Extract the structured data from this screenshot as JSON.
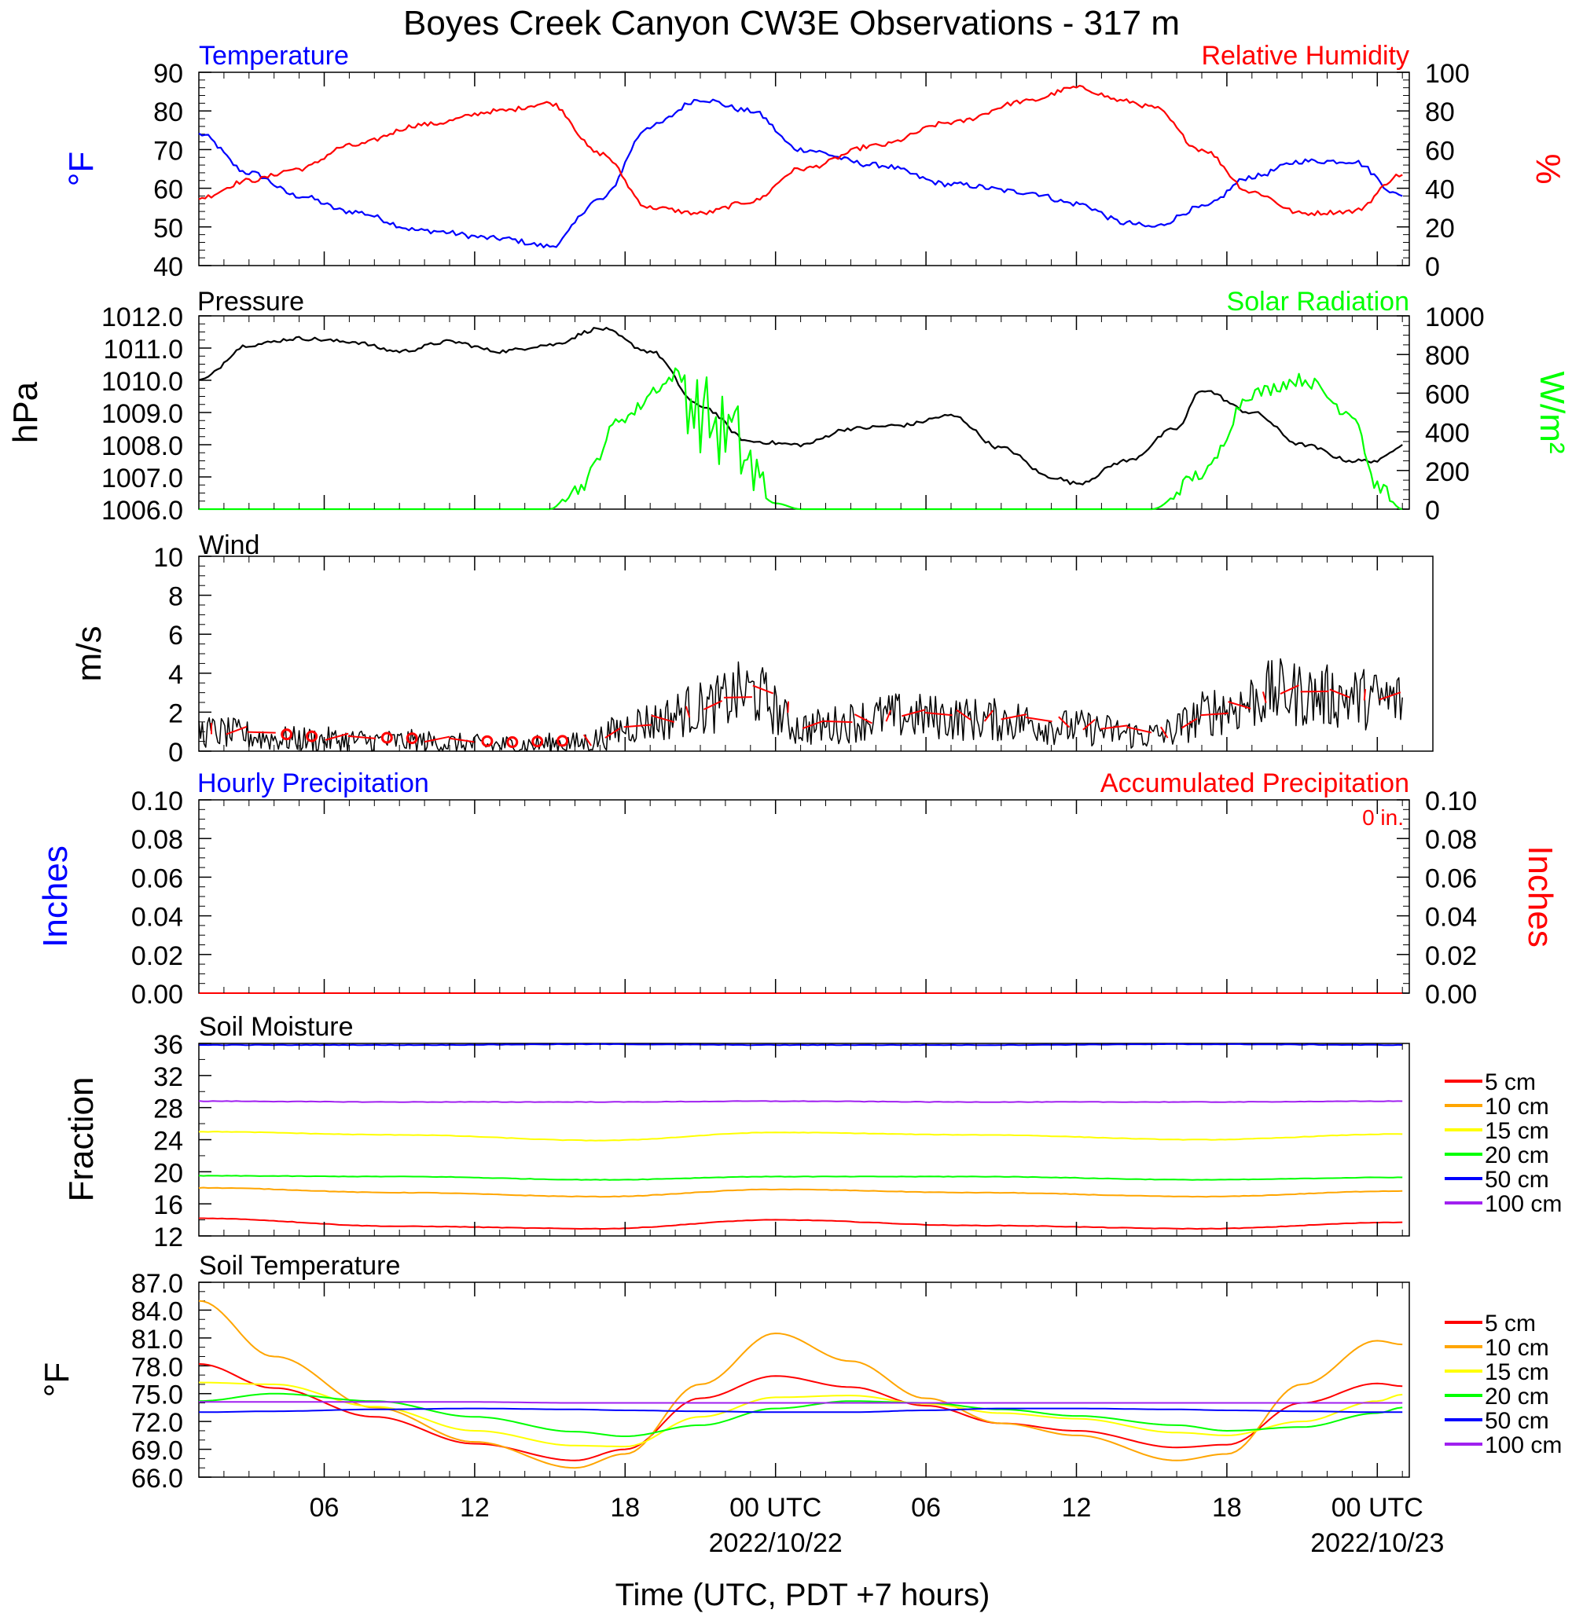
{
  "title": "Boyes Creek Canyon CW3E Observations - 317 m",
  "xaxis": {
    "title": "Time (UTC, PDT +7 hours)",
    "tick_labels": [
      "06",
      "12",
      "18",
      "00 UTC",
      "06",
      "12",
      "18",
      "00 UTC"
    ],
    "date_labels": [
      "2022/10/22",
      "2022/10/23"
    ]
  },
  "colors": {
    "temperature": "#0000ff",
    "humidity": "#ff0000",
    "pressure": "#000000",
    "solar": "#00ff00",
    "wind": "#000000",
    "wind_barb": "#ff0000",
    "hourly_precip": "#0000ff",
    "accum_precip": "#ff0000",
    "depth_5": "#ff0000",
    "depth_10": "#ffa500",
    "depth_15": "#ffff00",
    "depth_20": "#00ff00",
    "depth_50": "#0000ff",
    "depth_100": "#a020f0"
  },
  "panels": {
    "temp_rh": {
      "left_title": "Temperature",
      "right_title": "Relative Humidity",
      "left_ylabel": "°F",
      "right_ylabel": "%",
      "left_ticks": [
        "90",
        "80",
        "70",
        "60",
        "50",
        "40"
      ],
      "right_ticks": [
        "100",
        "80",
        "60",
        "40",
        "20",
        "0"
      ]
    },
    "pressure_solar": {
      "left_title": "Pressure",
      "right_title": "Solar Radiation",
      "left_ylabel": "hPa",
      "right_ylabel": "W/m²",
      "left_ticks": [
        "1012.0",
        "1011.0",
        "1010.0",
        "1009.0",
        "1008.0",
        "1007.0",
        "1006.0"
      ],
      "right_ticks": [
        "1000",
        "800",
        "600",
        "400",
        "200",
        "0"
      ]
    },
    "wind": {
      "left_title": "Wind",
      "left_ylabel": "m/s",
      "left_ticks": [
        "10",
        "8",
        "6",
        "4",
        "2",
        "0"
      ]
    },
    "precip": {
      "left_title": "Hourly Precipitation",
      "right_title": "Accumulated Precipitation",
      "total_label": "0 in.",
      "left_ylabel": "Inches",
      "right_ylabel": "Inches",
      "left_ticks": [
        "0.10",
        "0.08",
        "0.06",
        "0.04",
        "0.02",
        "0.00"
      ],
      "right_ticks": [
        "0.10",
        "0.08",
        "0.06",
        "0.04",
        "0.02",
        "0.00"
      ]
    },
    "soil_moisture": {
      "left_title": "Soil Moisture",
      "left_ylabel": "Fraction",
      "left_ticks": [
        "36",
        "32",
        "28",
        "24",
        "20",
        "16",
        "12"
      ],
      "legend": [
        "5 cm",
        "10 cm",
        "15 cm",
        "20 cm",
        "50 cm",
        "100 cm"
      ]
    },
    "soil_temp": {
      "left_title": "Soil Temperature",
      "left_ylabel": "°F",
      "left_ticks": [
        "87.0",
        "84.0",
        "81.0",
        "78.0",
        "75.0",
        "72.0",
        "69.0",
        "66.0"
      ],
      "legend": [
        "5 cm",
        "10 cm",
        "15 cm",
        "20 cm",
        "50 cm",
        "100 cm"
      ]
    }
  },
  "chart_data": [
    {
      "type": "line",
      "title": "Temperature",
      "ylabel": "°F",
      "ylim": [
        40,
        90
      ],
      "x": [
        "2022-10-21T01:00Z",
        "2022-10-21T03:00Z",
        "2022-10-21T05:00Z",
        "2022-10-21T07:00Z",
        "2022-10-21T10:00Z",
        "2022-10-21T13:00Z",
        "2022-10-21T15:00Z",
        "2022-10-21T17:00Z",
        "2022-10-21T19:00Z",
        "2022-10-21T21:00Z",
        "2022-10-21T23:00Z",
        "2022-10-22T01:00Z",
        "2022-10-22T04:00Z",
        "2022-10-22T07:00Z",
        "2022-10-22T10:00Z",
        "2022-10-22T12:00Z",
        "2022-10-22T14:00Z",
        "2022-10-22T15:00Z",
        "2022-10-22T17:00Z",
        "2022-10-22T19:00Z",
        "2022-10-22T21:00Z",
        "2022-10-22T23:00Z",
        "2022-10-23T01:00Z"
      ],
      "series": [
        {
          "name": "Temperature",
          "values": [
            74,
            64,
            58,
            54,
            49,
            47,
            45,
            57,
            76,
            83,
            80,
            70,
            66,
            61,
            59,
            56,
            51,
            50,
            55,
            63,
            67,
            67,
            58
          ]
        }
      ]
    },
    {
      "type": "line",
      "title": "Relative Humidity",
      "ylabel": "%",
      "ylim": [
        0,
        100
      ],
      "x": [
        "2022-10-21T01:00Z",
        "2022-10-21T03:00Z",
        "2022-10-21T05:00Z",
        "2022-10-21T07:00Z",
        "2022-10-21T10:00Z",
        "2022-10-21T13:00Z",
        "2022-10-21T15:00Z",
        "2022-10-21T17:00Z",
        "2022-10-21T19:00Z",
        "2022-10-21T21:00Z",
        "2022-10-21T23:00Z",
        "2022-10-22T01:00Z",
        "2022-10-22T04:00Z",
        "2022-10-22T07:00Z",
        "2022-10-22T10:00Z",
        "2022-10-22T12:00Z",
        "2022-10-22T14:00Z",
        "2022-10-22T15:00Z",
        "2022-10-22T17:00Z",
        "2022-10-22T19:00Z",
        "2022-10-22T21:00Z",
        "2022-10-22T23:00Z",
        "2022-10-23T01:00Z"
      ],
      "series": [
        {
          "name": "Relative Humidity",
          "values": [
            35,
            44,
            50,
            62,
            73,
            80,
            84,
            58,
            30,
            27,
            33,
            50,
            62,
            74,
            85,
            92,
            85,
            82,
            60,
            38,
            27,
            28,
            47
          ]
        }
      ]
    },
    {
      "type": "line",
      "title": "Pressure",
      "ylabel": "hPa",
      "ylim": [
        1006,
        1012
      ],
      "x": [
        "2022-10-21T01:00Z",
        "2022-10-21T03:00Z",
        "2022-10-21T05:00Z",
        "2022-10-21T07:00Z",
        "2022-10-21T09:00Z",
        "2022-10-21T11:00Z",
        "2022-10-21T13:00Z",
        "2022-10-21T15:00Z",
        "2022-10-21T17:00Z",
        "2022-10-21T19:00Z",
        "2022-10-21T21:00Z",
        "2022-10-21T23:00Z",
        "2022-10-22T01:00Z",
        "2022-10-22T03:00Z",
        "2022-10-22T05:00Z",
        "2022-10-22T07:00Z",
        "2022-10-22T09:00Z",
        "2022-10-22T11:00Z",
        "2022-10-22T12:00Z",
        "2022-10-22T14:00Z",
        "2022-10-22T16:00Z",
        "2022-10-22T17:00Z",
        "2022-10-22T19:00Z",
        "2022-10-22T21:00Z",
        "2022-10-22T23:00Z",
        "2022-10-23T00:00Z",
        "2022-10-23T01:00Z"
      ],
      "series": [
        {
          "name": "Pressure",
          "values": [
            1010.0,
            1011.1,
            1011.3,
            1011.2,
            1010.9,
            1011.2,
            1010.9,
            1011.1,
            1011.6,
            1010.9,
            1009.2,
            1008.1,
            1008.0,
            1008.5,
            1008.6,
            1008.9,
            1007.9,
            1007.0,
            1006.8,
            1007.5,
            1008.5,
            1009.7,
            1009.0,
            1008.0,
            1007.5,
            1007.5,
            1008.0
          ]
        }
      ]
    },
    {
      "type": "line",
      "title": "Solar Radiation",
      "ylabel": "W/m²",
      "ylim": [
        0,
        1000
      ],
      "x": [
        "2022-10-21T01:00Z",
        "2022-10-21T15:00Z",
        "2022-10-21T16:00Z",
        "2022-10-21T18:00Z",
        "2022-10-21T19:30Z",
        "2022-10-21T20:00Z",
        "2022-10-21T21:00Z",
        "2022-10-21T22:00Z",
        "2022-10-22T00:00Z",
        "2022-10-22T01:00Z",
        "2022-10-22T15:00Z",
        "2022-10-22T17:00Z",
        "2022-10-22T19:00Z",
        "2022-10-22T21:00Z",
        "2022-10-22T23:00Z",
        "2022-10-23T00:00Z",
        "2022-10-23T01:00Z"
      ],
      "series": [
        {
          "name": "Solar Radiation",
          "values": [
            0,
            0,
            100,
            480,
            640,
            700,
            500,
            400,
            30,
            0,
            0,
            180,
            600,
            670,
            500,
            120,
            0
          ]
        }
      ]
    },
    {
      "type": "line",
      "title": "Wind",
      "ylabel": "m/s",
      "ylim": [
        0,
        10
      ],
      "x": [
        "2022-10-21T01:00Z",
        "2022-10-21T05:00Z",
        "2022-10-21T09:00Z",
        "2022-10-21T13:00Z",
        "2022-10-21T16:00Z",
        "2022-10-21T19:00Z",
        "2022-10-21T21:00Z",
        "2022-10-21T23:00Z",
        "2022-10-22T01:00Z",
        "2022-10-22T05:00Z",
        "2022-10-22T09:00Z",
        "2022-10-22T12:00Z",
        "2022-10-22T15:00Z",
        "2022-10-22T18:00Z",
        "2022-10-22T20:00Z",
        "2022-10-22T22:00Z",
        "2022-10-23T01:00Z"
      ],
      "series": [
        {
          "name": "Wind",
          "values": [
            1.0,
            0.6,
            0.5,
            0.3,
            0.4,
            1.5,
            2.2,
            3.0,
            1.2,
            1.8,
            1.6,
            1.2,
            0.8,
            2.2,
            3.0,
            2.8,
            2.6
          ]
        }
      ]
    },
    {
      "type": "line",
      "title": "Hourly Precipitation",
      "ylabel": "Inches",
      "ylim": [
        0,
        0.1
      ],
      "x": [
        "2022-10-21T01:00Z",
        "2022-10-23T01:00Z"
      ],
      "series": [
        {
          "name": "Hourly Precipitation",
          "values": [
            0,
            0
          ]
        },
        {
          "name": "Accumulated Precipitation",
          "values": [
            0,
            0
          ]
        }
      ]
    },
    {
      "type": "line",
      "title": "Soil Moisture",
      "ylabel": "Fraction",
      "ylim": [
        12,
        36
      ],
      "x": [
        "2022-10-21T01:00Z",
        "2022-10-21T09:00Z",
        "2022-10-21T17:00Z",
        "2022-10-22T00:00Z",
        "2022-10-22T08:00Z",
        "2022-10-22T17:00Z",
        "2022-10-23T01:00Z"
      ],
      "series": [
        {
          "name": "5 cm",
          "values": [
            14.2,
            13.2,
            12.9,
            14.0,
            13.3,
            12.9,
            13.7
          ]
        },
        {
          "name": "10 cm",
          "values": [
            18.0,
            17.4,
            16.9,
            17.8,
            17.4,
            16.9,
            17.6
          ]
        },
        {
          "name": "15 cm",
          "values": [
            25.0,
            24.6,
            23.9,
            24.9,
            24.6,
            24.0,
            24.7
          ]
        },
        {
          "name": "20 cm",
          "values": [
            19.5,
            19.4,
            19.0,
            19.4,
            19.4,
            19.0,
            19.3
          ]
        },
        {
          "name": "50 cm",
          "values": [
            35.8,
            35.8,
            35.9,
            35.8,
            35.8,
            35.9,
            35.8
          ]
        },
        {
          "name": "100 cm",
          "values": [
            28.8,
            28.7,
            28.7,
            28.8,
            28.7,
            28.7,
            28.8
          ]
        }
      ]
    },
    {
      "type": "line",
      "title": "Soil Temperature",
      "ylabel": "°F",
      "ylim": [
        66,
        87
      ],
      "x": [
        "2022-10-21T01:00Z",
        "2022-10-21T04:00Z",
        "2022-10-21T08:00Z",
        "2022-10-21T12:00Z",
        "2022-10-21T16:00Z",
        "2022-10-21T18:00Z",
        "2022-10-21T21:00Z",
        "2022-10-22T00:00Z",
        "2022-10-22T03:00Z",
        "2022-10-22T06:00Z",
        "2022-10-22T09:00Z",
        "2022-10-22T12:00Z",
        "2022-10-22T16:00Z",
        "2022-10-22T18:00Z",
        "2022-10-22T21:00Z",
        "2022-10-23T00:00Z",
        "2022-10-23T01:00Z"
      ],
      "series": [
        {
          "name": "5 cm",
          "values": [
            78.2,
            75.6,
            72.5,
            69.6,
            67.8,
            69.0,
            74.5,
            76.9,
            75.7,
            73.7,
            71.8,
            71.0,
            69.2,
            69.5,
            74.0,
            76.1,
            75.8
          ]
        },
        {
          "name": "10 cm",
          "values": [
            85.0,
            79.0,
            73.5,
            69.8,
            67.0,
            68.5,
            76.0,
            81.5,
            78.5,
            74.5,
            71.8,
            70.5,
            67.8,
            68.5,
            76.0,
            80.7,
            80.3
          ]
        },
        {
          "name": "15 cm",
          "values": [
            76.2,
            76.0,
            73.6,
            71.0,
            69.4,
            69.3,
            72.5,
            74.6,
            74.8,
            73.9,
            72.9,
            72.3,
            70.8,
            70.5,
            72.0,
            74.2,
            74.9
          ]
        },
        {
          "name": "20 cm",
          "values": [
            74.2,
            75.0,
            74.2,
            72.5,
            70.9,
            70.4,
            71.6,
            73.4,
            74.2,
            74.0,
            73.3,
            72.6,
            71.6,
            71.0,
            71.4,
            72.9,
            73.5
          ]
        },
        {
          "name": "50 cm",
          "values": [
            73.0,
            73.1,
            73.3,
            73.4,
            73.3,
            73.2,
            73.1,
            73.0,
            73.0,
            73.2,
            73.4,
            73.4,
            73.3,
            73.2,
            73.1,
            73.0,
            73.0
          ]
        },
        {
          "name": "100 cm",
          "values": [
            74.1,
            74.1,
            74.1,
            74.1,
            74.0,
            74.0,
            74.0,
            74.0,
            74.0,
            74.0,
            74.0,
            74.0,
            74.0,
            74.0,
            74.0,
            74.0,
            74.0
          ]
        }
      ]
    }
  ]
}
